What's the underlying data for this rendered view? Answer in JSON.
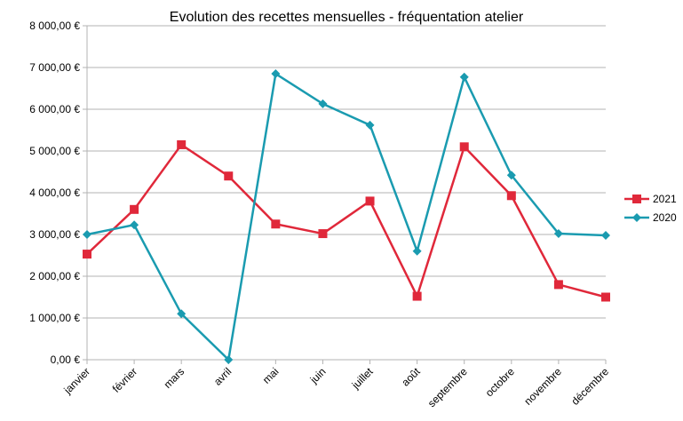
{
  "chart_data": {
    "type": "line",
    "title": "Evolution des recettes mensuelles - fréquentation atelier",
    "categories": [
      "janvier",
      "février",
      "mars",
      "avril",
      "mai",
      "juin",
      "juillet",
      "août",
      "septembre",
      "octobre",
      "novembre",
      "décembre"
    ],
    "series": [
      {
        "name": "2021",
        "color": "#e0283a",
        "marker": "square",
        "values": [
          2530,
          3600,
          5150,
          4400,
          3250,
          3020,
          3800,
          1520,
          5100,
          3930,
          1800,
          1500
        ]
      },
      {
        "name": "2020",
        "color": "#1a9bb0",
        "marker": "diamond",
        "values": [
          3000,
          3230,
          1100,
          0,
          6850,
          6130,
          5620,
          2600,
          6770,
          4420,
          3020,
          2980
        ]
      }
    ],
    "ylim": [
      0,
      8000
    ],
    "yticks": [
      {
        "value": 0,
        "label": "0,00 €"
      },
      {
        "value": 1000,
        "label": "1 000,00 €"
      },
      {
        "value": 2000,
        "label": "2 000,00 €"
      },
      {
        "value": 3000,
        "label": "3 000,00 €"
      },
      {
        "value": 4000,
        "label": "4 000,00 €"
      },
      {
        "value": 5000,
        "label": "5 000,00 €"
      },
      {
        "value": 6000,
        "label": "6 000,00 €"
      },
      {
        "value": 7000,
        "label": "7 000,00 €"
      },
      {
        "value": 8000,
        "label": "8 000,00 €"
      }
    ],
    "grid": true,
    "legend": "right"
  }
}
